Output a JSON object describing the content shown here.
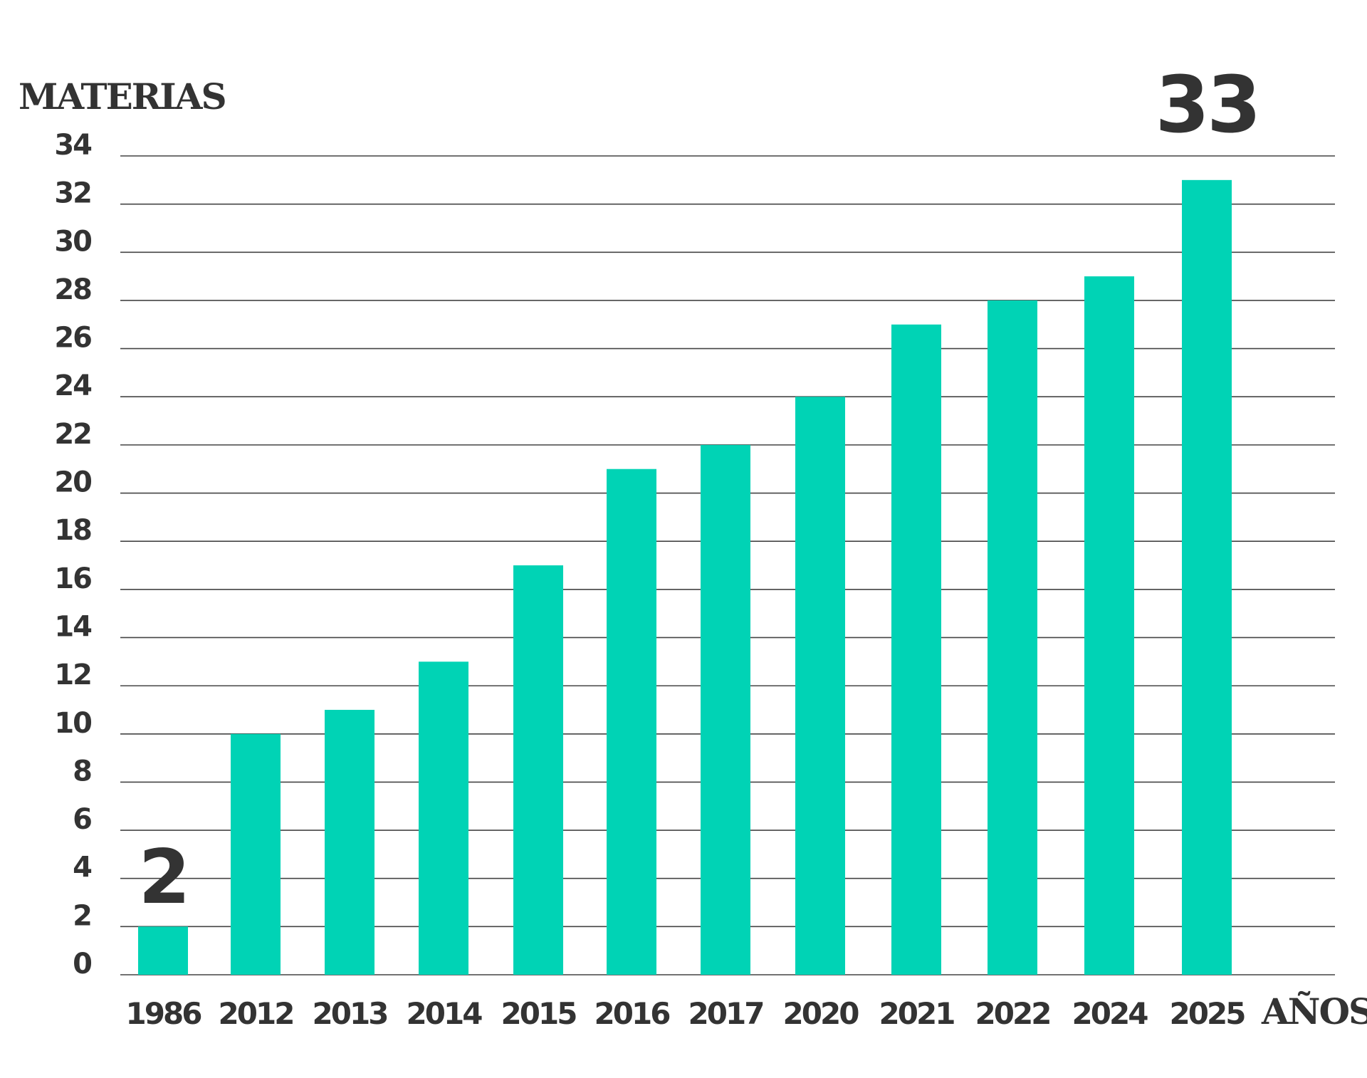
{
  "chart_data": {
    "type": "bar",
    "ylabel": "MATERIAS",
    "xlabel": "AÑOS",
    "categories": [
      "1986",
      "2012",
      "2013",
      "2014",
      "2015",
      "2016",
      "2017",
      "2020",
      "2021",
      "2022",
      "2024",
      "2025"
    ],
    "values": [
      2,
      10,
      11,
      13,
      17,
      21,
      22,
      24,
      27,
      28,
      29,
      33
    ],
    "ylim": [
      0,
      34
    ],
    "yticks": [
      0,
      2,
      4,
      6,
      8,
      10,
      12,
      14,
      16,
      18,
      20,
      22,
      24,
      26,
      28,
      30,
      32,
      34
    ],
    "grid": true,
    "annotations": [
      {
        "category": "1986",
        "text": "2"
      },
      {
        "category": "2025",
        "text": "33"
      }
    ],
    "bar_color": "#00d3b5",
    "text_color": "#333333"
  }
}
